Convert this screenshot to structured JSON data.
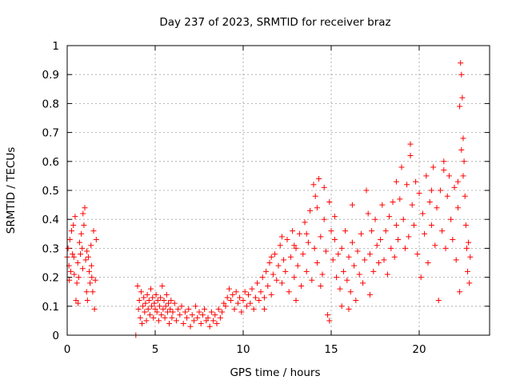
{
  "chart_data": {
    "type": "scatter",
    "title": "Day 237 of 2023, SRMTID for receiver braz",
    "xlabel": "GPS time / hours",
    "ylabel": "SRMTID / TECUs",
    "xlim": [
      0,
      24
    ],
    "ylim": [
      0,
      1
    ],
    "xticks": [
      0,
      5,
      10,
      15,
      20
    ],
    "xtick_labels": [
      "0",
      "5",
      "10",
      "15",
      "20"
    ],
    "yticks": [
      0,
      0.1,
      0.2,
      0.3,
      0.4,
      0.5,
      0.6,
      0.7,
      0.8,
      0.9,
      1
    ],
    "ytick_labels": [
      "0",
      "0.1",
      "0.2",
      "0.3",
      "0.4",
      "0.5",
      "0.6",
      "0.7",
      "0.8",
      "0.9",
      "1"
    ],
    "grid": true,
    "marker": "+",
    "color": "#ff0000",
    "series": [
      {
        "name": "SRMTID",
        "points": [
          [
            0.0,
            0.27
          ],
          [
            0.05,
            0.3
          ],
          [
            0.1,
            0.24
          ],
          [
            0.15,
            0.33
          ],
          [
            0.2,
            0.22
          ],
          [
            0.25,
            0.36
          ],
          [
            0.3,
            0.28
          ],
          [
            0.35,
            0.38
          ],
          [
            0.4,
            0.21
          ],
          [
            0.45,
            0.41
          ],
          [
            0.5,
            0.12
          ],
          [
            0.55,
            0.18
          ],
          [
            0.6,
            0.25
          ],
          [
            0.65,
            0.2
          ],
          [
            0.7,
            0.32
          ],
          [
            0.75,
            0.28
          ],
          [
            0.8,
            0.35
          ],
          [
            0.85,
            0.3
          ],
          [
            0.9,
            0.42
          ],
          [
            0.95,
            0.38
          ],
          [
            1.0,
            0.44
          ],
          [
            1.05,
            0.26
          ],
          [
            1.1,
            0.15
          ],
          [
            1.15,
            0.12
          ],
          [
            1.2,
            0.27
          ],
          [
            1.25,
            0.22
          ],
          [
            1.3,
            0.18
          ],
          [
            1.35,
            0.31
          ],
          [
            1.4,
            0.2
          ],
          [
            1.45,
            0.15
          ],
          [
            1.5,
            0.36
          ],
          [
            1.55,
            0.09
          ],
          [
            1.6,
            0.19
          ],
          [
            1.65,
            0.33
          ],
          [
            0.12,
            0.19
          ],
          [
            0.38,
            0.27
          ],
          [
            0.62,
            0.11
          ],
          [
            0.88,
            0.23
          ],
          [
            1.12,
            0.29
          ],
          [
            1.38,
            0.24
          ],
          [
            3.9,
            0.0
          ],
          [
            4.0,
            0.17
          ],
          [
            4.05,
            0.09
          ],
          [
            4.1,
            0.12
          ],
          [
            4.15,
            0.06
          ],
          [
            4.2,
            0.15
          ],
          [
            4.25,
            0.04
          ],
          [
            4.3,
            0.1
          ],
          [
            4.35,
            0.13
          ],
          [
            4.4,
            0.08
          ],
          [
            4.45,
            0.11
          ],
          [
            4.5,
            0.05
          ],
          [
            4.55,
            0.14
          ],
          [
            4.6,
            0.09
          ],
          [
            4.65,
            0.12
          ],
          [
            4.7,
            0.07
          ],
          [
            4.75,
            0.16
          ],
          [
            4.8,
            0.1
          ],
          [
            4.85,
            0.13
          ],
          [
            4.9,
            0.06
          ],
          [
            4.95,
            0.11
          ],
          [
            5.0,
            0.09
          ],
          [
            5.05,
            0.14
          ],
          [
            5.1,
            0.08
          ],
          [
            5.15,
            0.12
          ],
          [
            5.2,
            0.05
          ],
          [
            5.25,
            0.1
          ],
          [
            5.3,
            0.13
          ],
          [
            5.35,
            0.07
          ],
          [
            5.4,
            0.17
          ],
          [
            5.45,
            0.09
          ],
          [
            5.5,
            0.12
          ],
          [
            5.55,
            0.06
          ],
          [
            5.6,
            0.1
          ],
          [
            5.65,
            0.14
          ],
          [
            5.7,
            0.08
          ],
          [
            5.75,
            0.11
          ],
          [
            5.8,
            0.04
          ],
          [
            5.85,
            0.09
          ],
          [
            5.9,
            0.12
          ],
          [
            5.95,
            0.06
          ],
          [
            6.0,
            0.08
          ],
          [
            6.1,
            0.11
          ],
          [
            6.2,
            0.05
          ],
          [
            6.3,
            0.09
          ],
          [
            6.4,
            0.07
          ],
          [
            6.5,
            0.1
          ],
          [
            6.6,
            0.04
          ],
          [
            6.7,
            0.08
          ],
          [
            6.8,
            0.06
          ],
          [
            6.9,
            0.09
          ],
          [
            7.0,
            0.03
          ],
          [
            7.1,
            0.07
          ],
          [
            7.2,
            0.05
          ],
          [
            7.3,
            0.1
          ],
          [
            7.4,
            0.06
          ],
          [
            7.5,
            0.08
          ],
          [
            7.6,
            0.04
          ],
          [
            7.7,
            0.07
          ],
          [
            7.8,
            0.09
          ],
          [
            7.9,
            0.05
          ],
          [
            8.0,
            0.06
          ],
          [
            8.1,
            0.03
          ],
          [
            8.2,
            0.08
          ],
          [
            8.3,
            0.05
          ],
          [
            8.4,
            0.07
          ],
          [
            8.5,
            0.04
          ],
          [
            8.6,
            0.09
          ],
          [
            8.7,
            0.06
          ],
          [
            8.8,
            0.08
          ],
          [
            8.9,
            0.11
          ],
          [
            9.0,
            0.1
          ],
          [
            9.1,
            0.13
          ],
          [
            9.2,
            0.16
          ],
          [
            9.3,
            0.12
          ],
          [
            9.4,
            0.14
          ],
          [
            9.5,
            0.09
          ],
          [
            9.6,
            0.15
          ],
          [
            9.7,
            0.11
          ],
          [
            9.8,
            0.13
          ],
          [
            9.9,
            0.08
          ],
          [
            10.0,
            0.12
          ],
          [
            10.1,
            0.15
          ],
          [
            10.2,
            0.1
          ],
          [
            10.3,
            0.14
          ],
          [
            10.4,
            0.11
          ],
          [
            10.5,
            0.16
          ],
          [
            10.6,
            0.09
          ],
          [
            10.7,
            0.13
          ],
          [
            10.8,
            0.18
          ],
          [
            10.9,
            0.12
          ],
          [
            11.0,
            0.15
          ],
          [
            11.1,
            0.2
          ],
          [
            11.2,
            0.13
          ],
          [
            11.3,
            0.22
          ],
          [
            11.4,
            0.17
          ],
          [
            11.5,
            0.25
          ],
          [
            11.6,
            0.14
          ],
          [
            11.7,
            0.21
          ],
          [
            11.8,
            0.28
          ],
          [
            11.9,
            0.19
          ],
          [
            12.0,
            0.24
          ],
          [
            12.1,
            0.31
          ],
          [
            12.2,
            0.18
          ],
          [
            12.3,
            0.26
          ],
          [
            12.4,
            0.22
          ],
          [
            12.5,
            0.33
          ],
          [
            12.6,
            0.15
          ],
          [
            12.7,
            0.27
          ],
          [
            12.8,
            0.36
          ],
          [
            12.9,
            0.2
          ],
          [
            13.0,
            0.3
          ],
          [
            13.1,
            0.24
          ],
          [
            13.2,
            0.35
          ],
          [
            13.3,
            0.17
          ],
          [
            13.4,
            0.28
          ],
          [
            13.5,
            0.39
          ],
          [
            13.6,
            0.22
          ],
          [
            13.7,
            0.32
          ],
          [
            13.8,
            0.43
          ],
          [
            13.9,
            0.19
          ],
          [
            14.0,
            0.52
          ],
          [
            14.05,
            0.3
          ],
          [
            14.1,
            0.48
          ],
          [
            14.2,
            0.25
          ],
          [
            14.3,
            0.54
          ],
          [
            14.4,
            0.34
          ],
          [
            14.5,
            0.21
          ],
          [
            14.6,
            0.4
          ],
          [
            14.7,
            0.29
          ],
          [
            14.8,
            0.07
          ],
          [
            14.9,
            0.46
          ],
          [
            15.0,
            0.36
          ],
          [
            15.1,
            0.26
          ],
          [
            15.2,
            0.33
          ],
          [
            15.3,
            0.2
          ],
          [
            15.4,
            0.28
          ],
          [
            15.5,
            0.16
          ],
          [
            15.6,
            0.3
          ],
          [
            15.7,
            0.22
          ],
          [
            15.8,
            0.36
          ],
          [
            15.9,
            0.19
          ],
          [
            16.0,
            0.27
          ],
          [
            16.1,
            0.15
          ],
          [
            16.2,
            0.32
          ],
          [
            16.3,
            0.24
          ],
          [
            16.4,
            0.12
          ],
          [
            16.5,
            0.29
          ],
          [
            16.6,
            0.21
          ],
          [
            16.7,
            0.35
          ],
          [
            16.8,
            0.18
          ],
          [
            16.9,
            0.26
          ],
          [
            17.0,
            0.5
          ],
          [
            17.1,
            0.42
          ],
          [
            17.2,
            0.28
          ],
          [
            17.3,
            0.36
          ],
          [
            17.4,
            0.22
          ],
          [
            17.5,
            0.4
          ],
          [
            17.6,
            0.31
          ],
          [
            17.7,
            0.25
          ],
          [
            17.8,
            0.33
          ],
          [
            17.9,
            0.45
          ],
          [
            18.0,
            0.26
          ],
          [
            18.1,
            0.36
          ],
          [
            18.2,
            0.21
          ],
          [
            18.3,
            0.41
          ],
          [
            18.4,
            0.3
          ],
          [
            18.5,
            0.46
          ],
          [
            18.6,
            0.27
          ],
          [
            18.7,
            0.38
          ],
          [
            18.8,
            0.33
          ],
          [
            18.9,
            0.47
          ],
          [
            19.0,
            0.58
          ],
          [
            19.1,
            0.4
          ],
          [
            19.2,
            0.3
          ],
          [
            19.3,
            0.52
          ],
          [
            19.4,
            0.34
          ],
          [
            19.5,
            0.66
          ],
          [
            19.6,
            0.45
          ],
          [
            19.7,
            0.38
          ],
          [
            19.8,
            0.53
          ],
          [
            19.9,
            0.28
          ],
          [
            20.0,
            0.49
          ],
          [
            20.1,
            0.2
          ],
          [
            20.2,
            0.42
          ],
          [
            20.3,
            0.35
          ],
          [
            20.4,
            0.55
          ],
          [
            20.5,
            0.25
          ],
          [
            20.6,
            0.46
          ],
          [
            20.7,
            0.38
          ],
          [
            20.8,
            0.58
          ],
          [
            20.9,
            0.31
          ],
          [
            21.0,
            0.44
          ],
          [
            21.1,
            0.12
          ],
          [
            21.2,
            0.5
          ],
          [
            21.3,
            0.36
          ],
          [
            21.4,
            0.6
          ],
          [
            21.5,
            0.3
          ],
          [
            21.6,
            0.48
          ],
          [
            21.7,
            0.55
          ],
          [
            21.8,
            0.4
          ],
          [
            21.9,
            0.33
          ],
          [
            22.0,
            0.51
          ],
          [
            22.1,
            0.26
          ],
          [
            22.2,
            0.44
          ],
          [
            22.3,
            0.15
          ],
          [
            22.35,
            0.94
          ],
          [
            22.4,
            0.9
          ],
          [
            22.45,
            0.82
          ],
          [
            22.5,
            0.68
          ],
          [
            22.55,
            0.6
          ],
          [
            22.6,
            0.48
          ],
          [
            22.65,
            0.38
          ],
          [
            22.7,
            0.3
          ],
          [
            22.75,
            0.22
          ],
          [
            22.8,
            0.32
          ],
          [
            22.85,
            0.18
          ],
          [
            22.9,
            0.27
          ],
          [
            22.3,
            0.79
          ],
          [
            22.4,
            0.64
          ],
          [
            22.5,
            0.55
          ],
          [
            14.2,
            0.44
          ],
          [
            14.6,
            0.51
          ],
          [
            15.2,
            0.41
          ],
          [
            16.2,
            0.45
          ],
          [
            18.7,
            0.53
          ],
          [
            19.5,
            0.62
          ],
          [
            20.7,
            0.5
          ],
          [
            21.4,
            0.57
          ],
          [
            22.2,
            0.53
          ],
          [
            13.6,
            0.35
          ],
          [
            12.9,
            0.31
          ],
          [
            11.6,
            0.27
          ],
          [
            12.2,
            0.34
          ],
          [
            14.9,
            0.05
          ],
          [
            16.0,
            0.09
          ],
          [
            17.2,
            0.14
          ],
          [
            13.0,
            0.12
          ],
          [
            11.2,
            0.09
          ],
          [
            15.6,
            0.1
          ],
          [
            14.4,
            0.17
          ]
        ]
      }
    ]
  }
}
